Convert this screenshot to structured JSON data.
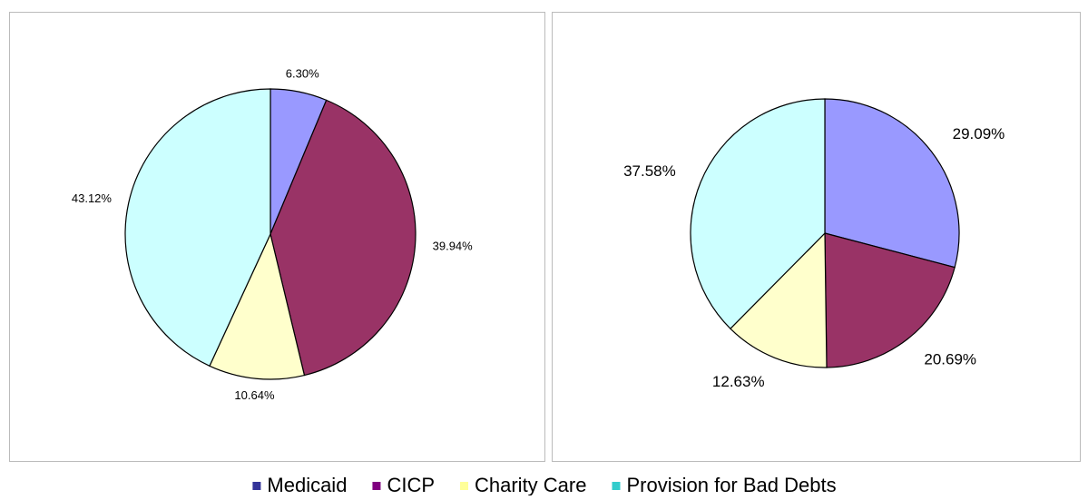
{
  "chart_data": [
    {
      "type": "pie",
      "values": [
        6.3,
        39.94,
        10.64,
        43.12
      ],
      "value_labels": [
        "6.30%",
        "39.94%",
        "10.64%",
        "43.12%"
      ],
      "colors": [
        "#9999ff",
        "#993366",
        "#ffffcc",
        "#ccffff"
      ]
    },
    {
      "type": "pie",
      "values": [
        29.09,
        20.69,
        12.63,
        37.58
      ],
      "value_labels": [
        "29.09%",
        "20.69%",
        "12.63%",
        "37.58%"
      ],
      "colors": [
        "#9999ff",
        "#993366",
        "#ffffcc",
        "#ccffff"
      ]
    }
  ],
  "legend": {
    "items": [
      {
        "label": "Medicaid",
        "color": "#333399"
      },
      {
        "label": "CICP",
        "color": "#800080"
      },
      {
        "label": "Charity Care",
        "color": "#ffff99"
      },
      {
        "label": "Provision for Bad Debts",
        "color": "#33cccc"
      }
    ]
  }
}
